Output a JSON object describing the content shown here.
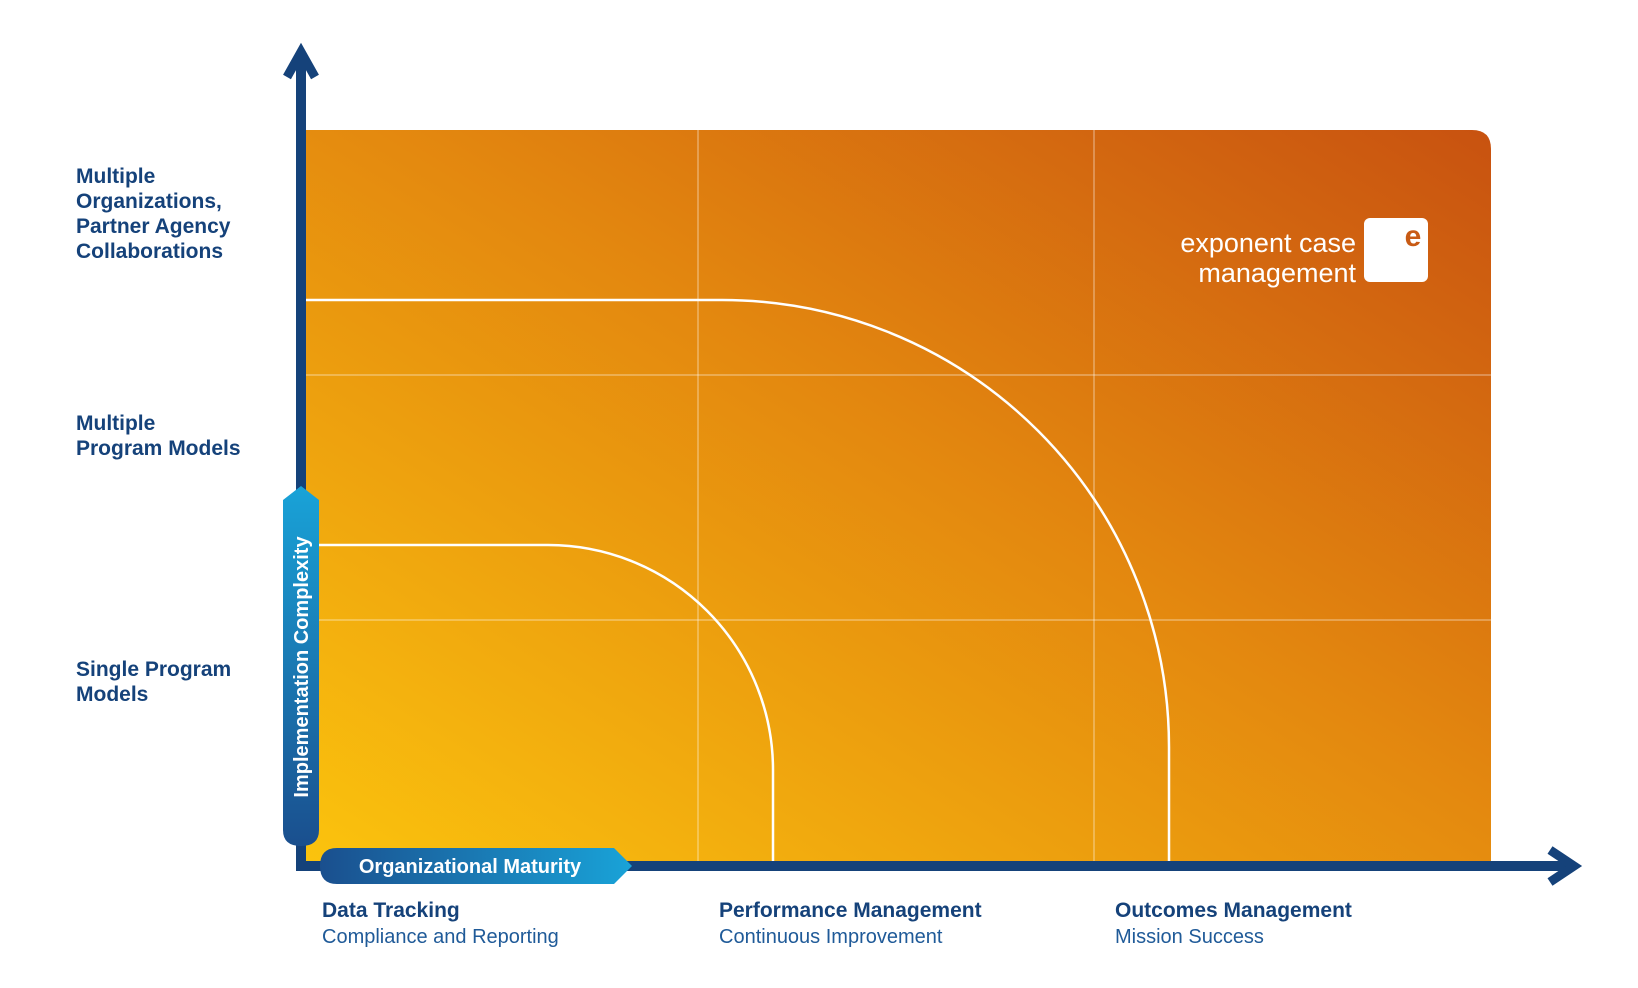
{
  "y_axis": {
    "title": "Implementation Complexity",
    "levels": [
      {
        "lines": [
          "Multiple",
          "Organizations,",
          "Partner Agency",
          "Collaborations"
        ]
      },
      {
        "lines": [
          "Multiple",
          "Program Models"
        ]
      },
      {
        "lines": [
          "Single Program",
          "Models"
        ]
      }
    ]
  },
  "x_axis": {
    "title": "Organizational Maturity",
    "stages": [
      {
        "title": "Data Tracking",
        "subtitle": "Compliance and Reporting"
      },
      {
        "title": "Performance Management",
        "subtitle": "Continuous Improvement"
      },
      {
        "title": "Outcomes Management",
        "subtitle": "Mission Success"
      }
    ]
  },
  "logo": {
    "line1": "exponent case",
    "line2": "management",
    "mark": "e"
  },
  "colors": {
    "axis": "#15427a",
    "badge_start": "#1a4f8e",
    "badge_end": "#19a3d8",
    "field_light": "#fbc30d",
    "field_dark": "#c85210",
    "logo_mark": "#c85a14"
  }
}
